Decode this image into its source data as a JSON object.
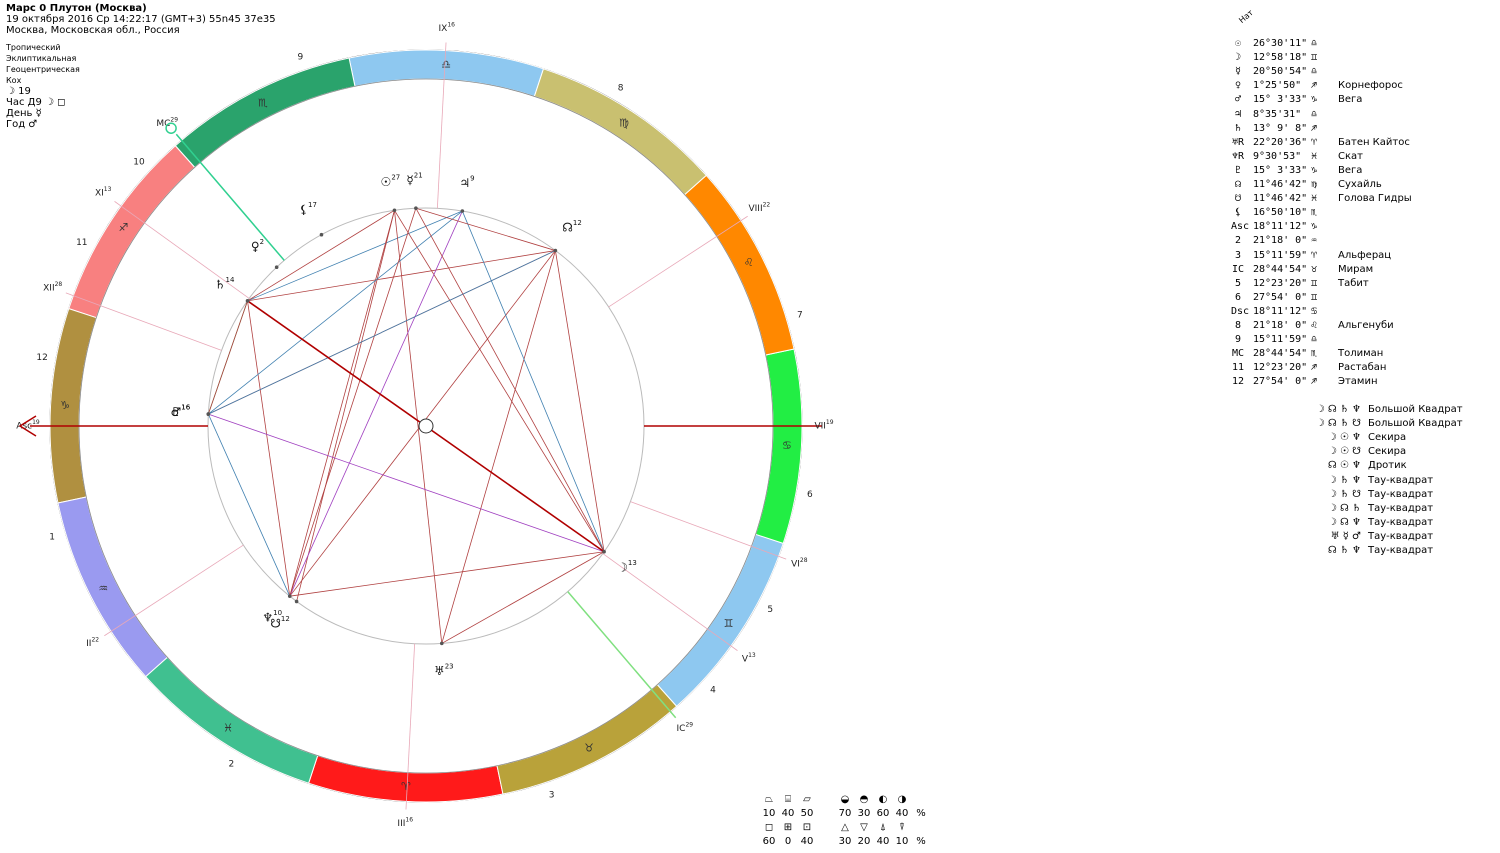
{
  "header": {
    "title": "Марс 0 Плутон (Москва)",
    "datetime": "19 октября 2016  Ср  14:22:17 (GMT+3) 55n45  37e35",
    "place": "Москва, Московская обл., Россия"
  },
  "settings": [
    "Тропический",
    "Эклиптикальная",
    "Геоцентрическая",
    "Кох"
  ],
  "moon_day": "☽ 19",
  "hour": "Час Д9 ☽ ◻",
  "day": "День ☿",
  "year": "Год ♂",
  "colors": {
    "aries": "#ff1a1a",
    "taurus": "#b9a23a",
    "gemini": "#8ec8f0",
    "cancer": "#22ee44",
    "leo": "#ff8800",
    "virgo": "#c9c070",
    "libra": "#8ec8f0",
    "scorpio": "#2aa36c",
    "sagittarius": "#f88080",
    "capricorn": "#b09040",
    "aquarius": "#9a9af0",
    "pisces": "#40c090",
    "axis": "#b00000",
    "aspect_red": "#b04040",
    "aspect_blue": "#4080b0",
    "aspect_purple": "#a040c0"
  },
  "chart_data": {
    "type": "astrological-natal-chart",
    "signs": [
      {
        "name": "aries",
        "glyph": "♈"
      },
      {
        "name": "taurus",
        "glyph": "♉"
      },
      {
        "name": "gemini",
        "glyph": "♊"
      },
      {
        "name": "cancer",
        "glyph": "♋"
      },
      {
        "name": "leo",
        "glyph": "♌"
      },
      {
        "name": "virgo",
        "glyph": "♍"
      },
      {
        "name": "libra",
        "glyph": "♎"
      },
      {
        "name": "scorpio",
        "glyph": "♏"
      },
      {
        "name": "sagittarius",
        "glyph": "♐"
      },
      {
        "name": "capricorn",
        "glyph": "♑"
      },
      {
        "name": "aquarius",
        "glyph": "♒"
      },
      {
        "name": "pisces",
        "glyph": "♓"
      }
    ],
    "asc_longitude": 288.19,
    "houses": [
      {
        "num": "1",
        "label": "Asc",
        "deg": "19",
        "lon": 288.19
      },
      {
        "num": "2",
        "label": "II",
        "deg": "22",
        "lon": 321.3
      },
      {
        "num": "3",
        "label": "III",
        "deg": "16",
        "lon": 15.2
      },
      {
        "num": "4",
        "label": "IC",
        "deg": "29",
        "lon": 58.75
      },
      {
        "num": "5",
        "label": "V",
        "deg": "13",
        "lon": 72.39
      },
      {
        "num": "6",
        "label": "VI",
        "deg": "28",
        "lon": 87.9
      },
      {
        "num": "7",
        "label": "VII",
        "deg": "19",
        "lon": 108.19
      },
      {
        "num": "8",
        "label": "VIII",
        "deg": "22",
        "lon": 141.3
      },
      {
        "num": "9",
        "label": "IX",
        "deg": "16",
        "lon": 195.2
      },
      {
        "num": "10",
        "label": "MC",
        "deg": "29",
        "lon": 238.75
      },
      {
        "num": "11",
        "label": "XI",
        "deg": "13",
        "lon": 252.39
      },
      {
        "num": "12",
        "label": "XII",
        "deg": "28",
        "lon": 267.9
      }
    ],
    "planets": [
      {
        "id": "sun",
        "glyph": "☉",
        "deg": "27",
        "lon": 206.51
      },
      {
        "id": "moon",
        "glyph": "☽",
        "deg": "13",
        "lon": 72.97
      },
      {
        "id": "mercury",
        "glyph": "☿",
        "deg": "21",
        "lon": 200.85
      },
      {
        "id": "venus",
        "glyph": "♀",
        "deg": "2",
        "lon": 241.43
      },
      {
        "id": "mars",
        "glyph": "♂",
        "deg": "16",
        "lon": 285.06
      },
      {
        "id": "jupiter",
        "glyph": "♃",
        "deg": "9",
        "lon": 188.59
      },
      {
        "id": "saturn",
        "glyph": "♄",
        "deg": "14",
        "lon": 253.15
      },
      {
        "id": "uranus",
        "glyph": "♅",
        "deg": "23",
        "lon": 22.34
      },
      {
        "id": "neptune",
        "glyph": "♆",
        "deg": "10",
        "lon": 339.51
      },
      {
        "id": "pluto",
        "glyph": "♇",
        "deg": "16",
        "lon": 285.06
      },
      {
        "id": "node",
        "glyph": "☊",
        "deg": "12",
        "lon": 161.78
      },
      {
        "id": "southnode",
        "glyph": "☋",
        "deg": "12",
        "lon": 341.78
      },
      {
        "id": "lilith",
        "glyph": "⚸",
        "deg": "17",
        "lon": 226.84
      }
    ],
    "aspects": [
      [
        "saturn",
        "moon",
        "red"
      ],
      [
        "saturn",
        "node",
        "red"
      ],
      [
        "saturn",
        "jupiter",
        "blue"
      ],
      [
        "saturn",
        "sun",
        "red"
      ],
      [
        "saturn",
        "neptune",
        "red"
      ],
      [
        "saturn",
        "pluto",
        "green"
      ],
      [
        "node",
        "moon",
        "red"
      ],
      [
        "node",
        "neptune",
        "red"
      ],
      [
        "node",
        "pluto",
        "red"
      ],
      [
        "node",
        "uranus",
        "red"
      ],
      [
        "sun",
        "neptune",
        "red"
      ],
      [
        "sun",
        "moon",
        "red"
      ],
      [
        "sun",
        "uranus",
        "red"
      ],
      [
        "sun",
        "southnode",
        "red"
      ],
      [
        "jupiter",
        "moon",
        "blue"
      ],
      [
        "jupiter",
        "neptune",
        "purple"
      ],
      [
        "jupiter",
        "pluto",
        "blue"
      ],
      [
        "mercury",
        "neptune",
        "red"
      ],
      [
        "mercury",
        "moon",
        "red"
      ],
      [
        "mercury",
        "node",
        "red"
      ],
      [
        "pluto",
        "moon",
        "purple"
      ],
      [
        "pluto",
        "neptune",
        "blue"
      ],
      [
        "neptune",
        "moon",
        "red"
      ],
      [
        "uranus",
        "moon",
        "red"
      ],
      [
        "mars",
        "saturn",
        "red"
      ],
      [
        "mars",
        "node",
        "blue"
      ]
    ]
  },
  "table": {
    "header": "Нат",
    "rows": [
      {
        "glyph": "☉",
        "deg": "26°30'11\"",
        "sign": "♎",
        "star": ""
      },
      {
        "glyph": "☽",
        "deg": "12°58'18\"",
        "sign": "♊",
        "star": ""
      },
      {
        "glyph": "☿",
        "deg": "20°50'54\"",
        "sign": "♎",
        "star": ""
      },
      {
        "glyph": "♀",
        "deg": " 1°25'50\"",
        "sign": "♐",
        "star": "Корнефорос"
      },
      {
        "glyph": "♂",
        "deg": "15° 3'33\"",
        "sign": "♑",
        "star": "Вега"
      },
      {
        "glyph": "♃",
        "deg": " 8°35'31\"",
        "sign": "♎",
        "star": ""
      },
      {
        "glyph": "♄",
        "deg": "13° 9' 8\"",
        "sign": "♐",
        "star": ""
      },
      {
        "glyph": "♅R",
        "deg": "22°20'36\"",
        "sign": "♈",
        "star": "Батен Кайтос"
      },
      {
        "glyph": "♆R",
        "deg": " 9°30'53\"",
        "sign": "♓",
        "star": "Скат"
      },
      {
        "glyph": "♇",
        "deg": "15° 3'33\"",
        "sign": "♑",
        "star": "Вега"
      },
      {
        "glyph": "☊",
        "deg": "11°46'42\"",
        "sign": "♍",
        "star": "Сухайль"
      },
      {
        "glyph": "☋",
        "deg": "11°46'42\"",
        "sign": "♓",
        "star": "Голова Гидры"
      },
      {
        "glyph": "⚸",
        "deg": "16°50'10\"",
        "sign": "♏",
        "star": ""
      },
      {
        "glyph": "Asc",
        "deg": "18°11'12\"",
        "sign": "♑",
        "star": ""
      },
      {
        "glyph": "2",
        "deg": "21°18' 0\"",
        "sign": "♒",
        "star": ""
      },
      {
        "glyph": "3",
        "deg": "15°11'59\"",
        "sign": "♈",
        "star": "Альферац"
      },
      {
        "glyph": "IC",
        "deg": "28°44'54\"",
        "sign": "♉",
        "star": "Мирам"
      },
      {
        "glyph": "5",
        "deg": "12°23'20\"",
        "sign": "♊",
        "star": "Табит"
      },
      {
        "glyph": "6",
        "deg": "27°54' 0\"",
        "sign": "♊",
        "star": ""
      },
      {
        "glyph": "Dsc",
        "deg": "18°11'12\"",
        "sign": "♋",
        "star": ""
      },
      {
        "glyph": "8",
        "deg": "21°18' 0\"",
        "sign": "♌",
        "star": "Альгенуби"
      },
      {
        "glyph": "9",
        "deg": "15°11'59\"",
        "sign": "♎",
        "star": ""
      },
      {
        "glyph": "MC",
        "deg": "28°44'54\"",
        "sign": "♏",
        "star": "Толиман"
      },
      {
        "glyph": "11",
        "deg": "12°23'20\"",
        "sign": "♐",
        "star": "Растабан"
      },
      {
        "glyph": "12",
        "deg": "27°54' 0\"",
        "sign": "♐",
        "star": "Этамин"
      }
    ]
  },
  "configurations": [
    {
      "glyphs": "☽ ☊ ♄ ♆",
      "name": "Большой Квадрат"
    },
    {
      "glyphs": "☽ ☊ ♄ ☋",
      "name": "Большой Квадрат"
    },
    {
      "glyphs": "☽ ☉ ♆",
      "name": "Секира"
    },
    {
      "glyphs": "☽ ☉ ☋",
      "name": "Секира"
    },
    {
      "glyphs": "☊ ☉ ♆",
      "name": "Дротик"
    },
    {
      "glyphs": "☽ ♄ ♆",
      "name": "Тау-квадрат"
    },
    {
      "glyphs": "☽ ♄ ☋",
      "name": "Тау-квадрат"
    },
    {
      "glyphs": "☽ ☊ ♄",
      "name": "Тау-квадрат"
    },
    {
      "glyphs": "☽ ☊ ♆",
      "name": "Тау-квадрат"
    },
    {
      "glyphs": "♅ ☿ ♂",
      "name": "Тау-квадрат"
    },
    {
      "glyphs": "☊ ♄ ♆",
      "name": "Тау-квадрат"
    }
  ],
  "stats": {
    "row1_icons": [
      "⏢",
      "⌸",
      "⏥",
      "◒",
      "◓",
      "◐",
      "◑"
    ],
    "row1_vals": [
      "10",
      "40",
      "50",
      "70",
      "30",
      "60",
      "40",
      "%"
    ],
    "row2_icons": [
      "◻",
      "⊞",
      "⊡",
      "△",
      "▽",
      "⍋",
      "⍒"
    ],
    "row2_vals": [
      "60",
      "0",
      "40",
      "30",
      "20",
      "40",
      "10",
      "%"
    ]
  }
}
